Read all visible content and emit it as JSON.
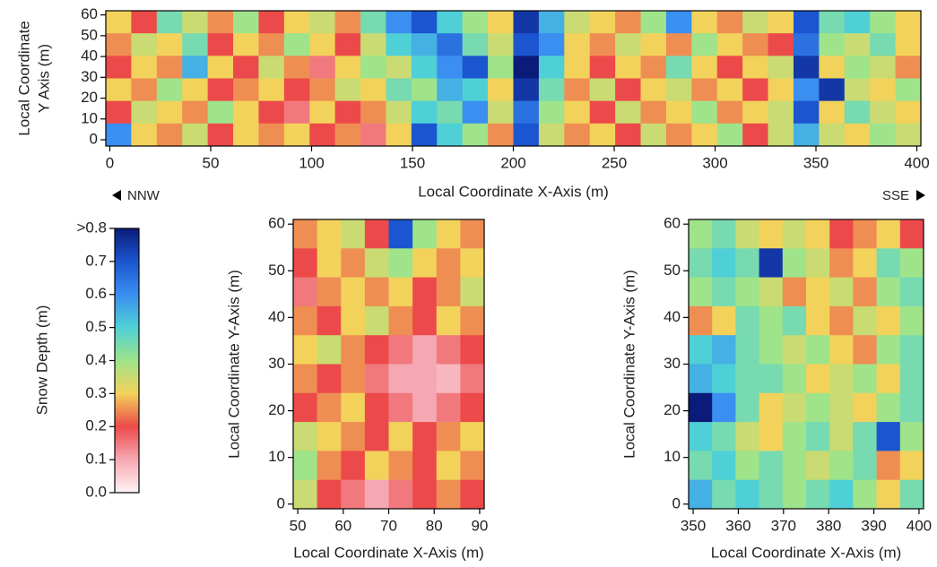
{
  "chart_data": [
    {
      "type": "heatmap",
      "xlabel": "Local Coordinate X-Axis (m)",
      "ylabel": [
        "Local Coordinate",
        "Y Axis (m)"
      ],
      "xlim": [
        -2,
        402
      ],
      "ylim": [
        -3,
        62
      ],
      "xticks": [
        0,
        50,
        100,
        150,
        200,
        250,
        300,
        350,
        400
      ],
      "yticks": [
        0,
        10,
        20,
        30,
        40,
        50,
        60
      ],
      "annotations": [
        "NNW",
        "SSE"
      ],
      "z": [
        [
          0.3,
          0.2,
          0.45,
          0.35,
          0.25,
          0.4,
          0.2,
          0.3,
          0.35,
          0.25,
          0.45,
          0.6,
          0.7,
          0.5,
          0.4,
          0.3,
          0.75,
          0.55,
          0.35,
          0.3,
          0.25,
          0.4,
          0.6,
          0.3,
          0.25,
          0.35,
          0.3,
          0.7,
          0.45,
          0.5,
          0.4,
          0.3
        ],
        [
          0.25,
          0.35,
          0.3,
          0.45,
          0.2,
          0.3,
          0.25,
          0.4,
          0.3,
          0.2,
          0.35,
          0.5,
          0.55,
          0.65,
          0.45,
          0.35,
          0.7,
          0.6,
          0.3,
          0.25,
          0.35,
          0.3,
          0.25,
          0.4,
          0.3,
          0.25,
          0.2,
          0.65,
          0.4,
          0.35,
          0.45,
          0.3
        ],
        [
          0.2,
          0.3,
          0.25,
          0.55,
          0.3,
          0.2,
          0.35,
          0.25,
          0.15,
          0.3,
          0.4,
          0.35,
          0.5,
          0.6,
          0.7,
          0.4,
          0.8,
          0.5,
          0.3,
          0.2,
          0.3,
          0.25,
          0.45,
          0.3,
          0.2,
          0.3,
          0.35,
          0.75,
          0.3,
          0.4,
          0.35,
          0.25
        ],
        [
          0.3,
          0.25,
          0.4,
          0.3,
          0.2,
          0.25,
          0.3,
          0.2,
          0.25,
          0.35,
          0.3,
          0.45,
          0.4,
          0.55,
          0.5,
          0.3,
          0.75,
          0.45,
          0.25,
          0.35,
          0.2,
          0.3,
          0.35,
          0.25,
          0.3,
          0.2,
          0.3,
          0.6,
          0.75,
          0.35,
          0.3,
          0.4
        ],
        [
          0.2,
          0.35,
          0.3,
          0.25,
          0.4,
          0.3,
          0.2,
          0.15,
          0.3,
          0.2,
          0.25,
          0.35,
          0.5,
          0.45,
          0.6,
          0.35,
          0.65,
          0.4,
          0.3,
          0.2,
          0.35,
          0.25,
          0.3,
          0.4,
          0.25,
          0.3,
          0.35,
          0.7,
          0.3,
          0.45,
          0.35,
          0.3
        ],
        [
          0.6,
          0.3,
          0.25,
          0.35,
          0.2,
          0.3,
          0.25,
          0.3,
          0.2,
          0.25,
          0.15,
          0.3,
          0.7,
          0.5,
          0.4,
          0.25,
          0.7,
          0.35,
          0.25,
          0.3,
          0.2,
          0.35,
          0.25,
          0.3,
          0.4,
          0.2,
          0.35,
          0.55,
          0.35,
          0.3,
          0.4,
          0.35
        ]
      ]
    },
    {
      "type": "heatmap",
      "xlabel": "Local Coordinate X-Axis (m)",
      "ylabel": [
        "Local Coordinate Y-Axis (m)"
      ],
      "xlim": [
        49,
        91
      ],
      "ylim": [
        -1,
        61
      ],
      "xticks": [
        50,
        60,
        70,
        80,
        90
      ],
      "yticks": [
        0,
        10,
        20,
        30,
        40,
        50,
        60
      ],
      "z": [
        [
          0.25,
          0.3,
          0.35,
          0.2,
          0.7,
          0.4,
          0.3,
          0.25
        ],
        [
          0.2,
          0.3,
          0.25,
          0.35,
          0.4,
          0.3,
          0.25,
          0.3
        ],
        [
          0.15,
          0.25,
          0.3,
          0.25,
          0.3,
          0.2,
          0.25,
          0.35
        ],
        [
          0.25,
          0.2,
          0.3,
          0.35,
          0.25,
          0.2,
          0.3,
          0.25
        ],
        [
          0.3,
          0.35,
          0.25,
          0.2,
          0.15,
          0.1,
          0.15,
          0.2
        ],
        [
          0.25,
          0.2,
          0.25,
          0.15,
          0.1,
          0.1,
          0.08,
          0.15
        ],
        [
          0.2,
          0.25,
          0.3,
          0.2,
          0.15,
          0.1,
          0.15,
          0.2
        ],
        [
          0.35,
          0.3,
          0.25,
          0.2,
          0.3,
          0.2,
          0.25,
          0.3
        ],
        [
          0.4,
          0.25,
          0.2,
          0.3,
          0.25,
          0.2,
          0.3,
          0.25
        ],
        [
          0.35,
          0.2,
          0.15,
          0.1,
          0.15,
          0.2,
          0.25,
          0.2
        ]
      ]
    },
    {
      "type": "heatmap",
      "xlabel": "Local Coordinate X-Axis (m)",
      "ylabel": [
        "Local Coordinate Y-Axis (m)"
      ],
      "xlim": [
        349,
        401
      ],
      "ylim": [
        -1,
        61
      ],
      "xticks": [
        350,
        360,
        370,
        380,
        390,
        400
      ],
      "yticks": [
        0,
        10,
        20,
        30,
        40,
        50,
        60
      ],
      "z": [
        [
          0.4,
          0.45,
          0.35,
          0.3,
          0.35,
          0.3,
          0.2,
          0.25,
          0.3,
          0.2
        ],
        [
          0.45,
          0.5,
          0.45,
          0.75,
          0.4,
          0.35,
          0.25,
          0.3,
          0.45,
          0.4
        ],
        [
          0.4,
          0.45,
          0.4,
          0.35,
          0.25,
          0.3,
          0.35,
          0.25,
          0.4,
          0.45
        ],
        [
          0.25,
          0.3,
          0.45,
          0.4,
          0.45,
          0.3,
          0.25,
          0.35,
          0.3,
          0.4
        ],
        [
          0.5,
          0.55,
          0.45,
          0.4,
          0.35,
          0.4,
          0.3,
          0.25,
          0.4,
          0.45
        ],
        [
          0.55,
          0.5,
          0.45,
          0.45,
          0.4,
          0.3,
          0.35,
          0.4,
          0.3,
          0.45
        ],
        [
          0.8,
          0.6,
          0.45,
          0.3,
          0.35,
          0.4,
          0.35,
          0.3,
          0.4,
          0.45
        ],
        [
          0.5,
          0.45,
          0.35,
          0.3,
          0.4,
          0.45,
          0.35,
          0.45,
          0.7,
          0.4
        ],
        [
          0.45,
          0.5,
          0.4,
          0.45,
          0.4,
          0.35,
          0.4,
          0.45,
          0.25,
          0.3
        ],
        [
          0.55,
          0.45,
          0.5,
          0.45,
          0.4,
          0.45,
          0.5,
          0.4,
          0.3,
          0.45
        ]
      ]
    }
  ],
  "colorbar": {
    "label": "Snow Depth (m)",
    "lim": [
      0,
      0.8
    ],
    "ticks": [
      {
        "value": 0,
        "label": "0.0"
      },
      0.1,
      0.2,
      0.3,
      0.4,
      0.5,
      0.6,
      0.7,
      {
        "value": 0.8,
        "label": ">0.8"
      }
    ],
    "colorscale": [
      "#fff4f4",
      "#f6a8b2",
      "#ec4a4a",
      "#f2d25a",
      "#9fe38a",
      "#4fd0d6",
      "#3a8ff0",
      "#1b55d0",
      "#0b1b7a"
    ]
  }
}
